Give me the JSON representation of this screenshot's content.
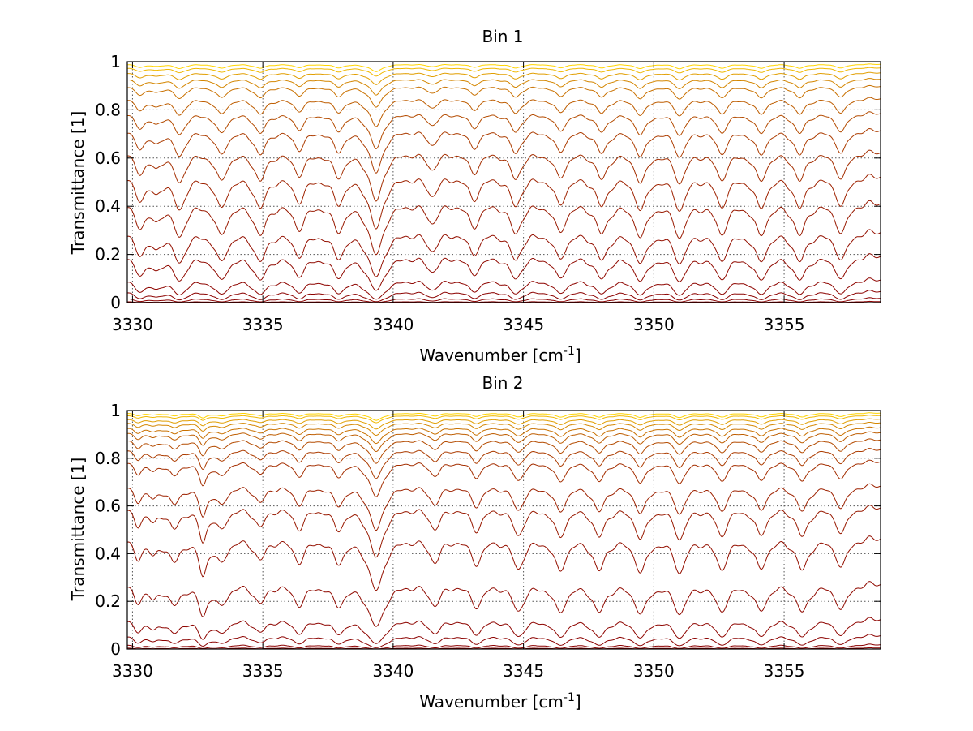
{
  "figure": {
    "background": "#ffffff"
  },
  "chart_data": [
    {
      "type": "line",
      "title": "Bin 1",
      "xlabel_main": "Wavenumber [cm",
      "xlabel_sup": "-1",
      "xlabel_close": "]",
      "ylabel": "Transmittance [1]",
      "xlim": [
        3329.8,
        3358.7
      ],
      "ylim": [
        0,
        1
      ],
      "xticks": [
        3330,
        3335,
        3340,
        3345,
        3350,
        3355
      ],
      "xtick_labels": [
        "3330",
        "3335",
        "3340",
        "3345",
        "3350",
        "3355"
      ],
      "yticks": [
        0,
        0.2,
        0.4,
        0.6,
        0.8,
        1
      ],
      "ytick_labels": [
        "0",
        "0.2",
        "0.4",
        "0.6",
        "0.8",
        "1"
      ],
      "grid": true,
      "grid_style": "dotted",
      "line_color_range": [
        "#8b0000",
        "#ffd400"
      ],
      "series_note_count": 16,
      "continuum_levels": [
        0.005,
        0.02,
        0.05,
        0.1,
        0.2,
        0.3,
        0.42,
        0.53,
        0.63,
        0.72,
        0.79,
        0.85,
        0.9,
        0.93,
        0.955,
        0.975,
        0.99
      ],
      "absorption_lines": [
        {
          "x": 3330.3,
          "depth": 0.55,
          "width": 0.25
        },
        {
          "x": 3330.9,
          "depth": 0.35,
          "width": 0.2
        },
        {
          "x": 3331.8,
          "depth": 0.85,
          "width": 0.25
        },
        {
          "x": 3333.4,
          "depth": 0.8,
          "width": 0.25
        },
        {
          "x": 3334.9,
          "depth": 0.8,
          "width": 0.25
        },
        {
          "x": 3336.4,
          "depth": 0.6,
          "width": 0.25
        },
        {
          "x": 3337.9,
          "depth": 0.65,
          "width": 0.25
        },
        {
          "x": 3339.35,
          "depth": 1.5,
          "width": 0.28
        },
        {
          "x": 3341.5,
          "depth": 0.45,
          "width": 0.25
        },
        {
          "x": 3343.1,
          "depth": 0.55,
          "width": 0.25
        },
        {
          "x": 3344.7,
          "depth": 0.75,
          "width": 0.25
        },
        {
          "x": 3346.4,
          "depth": 0.7,
          "width": 0.25
        },
        {
          "x": 3348.0,
          "depth": 0.75,
          "width": 0.25
        },
        {
          "x": 3349.5,
          "depth": 0.85,
          "width": 0.25
        },
        {
          "x": 3351.0,
          "depth": 0.85,
          "width": 0.25
        },
        {
          "x": 3352.6,
          "depth": 0.75,
          "width": 0.25
        },
        {
          "x": 3354.1,
          "depth": 0.8,
          "width": 0.25
        },
        {
          "x": 3355.6,
          "depth": 0.8,
          "width": 0.25
        },
        {
          "x": 3357.2,
          "depth": 0.75,
          "width": 0.25
        }
      ]
    },
    {
      "type": "line",
      "title": "Bin 2",
      "xlabel_main": "Wavenumber [cm",
      "xlabel_sup": "-1",
      "xlabel_close": "]",
      "ylabel": "Transmittance [1]",
      "xlim": [
        3329.8,
        3358.7
      ],
      "ylim": [
        0,
        1
      ],
      "xticks": [
        3330,
        3335,
        3340,
        3345,
        3350,
        3355
      ],
      "xtick_labels": [
        "3330",
        "3335",
        "3340",
        "3345",
        "3350",
        "3355"
      ],
      "yticks": [
        0,
        0.2,
        0.4,
        0.6,
        0.8,
        1
      ],
      "ytick_labels": [
        "0",
        "0.2",
        "0.4",
        "0.6",
        "0.8",
        "1"
      ],
      "grid": true,
      "grid_style": "dotted",
      "line_color_range": [
        "#8b0000",
        "#ffd400"
      ],
      "series_note_count": 16,
      "continuum_levels": [
        0.005,
        0.02,
        0.06,
        0.13,
        0.28,
        0.47,
        0.6,
        0.69,
        0.79,
        0.84,
        0.88,
        0.91,
        0.93,
        0.95,
        0.965,
        0.98,
        0.99
      ],
      "absorption_lines": [
        {
          "x": 3330.2,
          "depth": 0.45,
          "width": 0.2
        },
        {
          "x": 3330.8,
          "depth": 0.35,
          "width": 0.2
        },
        {
          "x": 3331.6,
          "depth": 0.55,
          "width": 0.25
        },
        {
          "x": 3332.7,
          "depth": 0.9,
          "width": 0.18
        },
        {
          "x": 3333.4,
          "depth": 0.55,
          "width": 0.25
        },
        {
          "x": 3334.9,
          "depth": 0.5,
          "width": 0.25
        },
        {
          "x": 3336.4,
          "depth": 0.55,
          "width": 0.25
        },
        {
          "x": 3337.9,
          "depth": 0.55,
          "width": 0.25
        },
        {
          "x": 3339.35,
          "depth": 1.5,
          "width": 0.3
        },
        {
          "x": 3341.6,
          "depth": 0.55,
          "width": 0.25
        },
        {
          "x": 3343.2,
          "depth": 0.6,
          "width": 0.25
        },
        {
          "x": 3344.8,
          "depth": 0.75,
          "width": 0.25
        },
        {
          "x": 3346.4,
          "depth": 0.8,
          "width": 0.25
        },
        {
          "x": 3347.9,
          "depth": 0.8,
          "width": 0.25
        },
        {
          "x": 3349.5,
          "depth": 0.85,
          "width": 0.25
        },
        {
          "x": 3351.0,
          "depth": 0.85,
          "width": 0.25
        },
        {
          "x": 3352.6,
          "depth": 0.75,
          "width": 0.25
        },
        {
          "x": 3354.1,
          "depth": 0.75,
          "width": 0.25
        },
        {
          "x": 3355.7,
          "depth": 0.8,
          "width": 0.25
        },
        {
          "x": 3357.2,
          "depth": 0.7,
          "width": 0.25
        }
      ]
    }
  ]
}
